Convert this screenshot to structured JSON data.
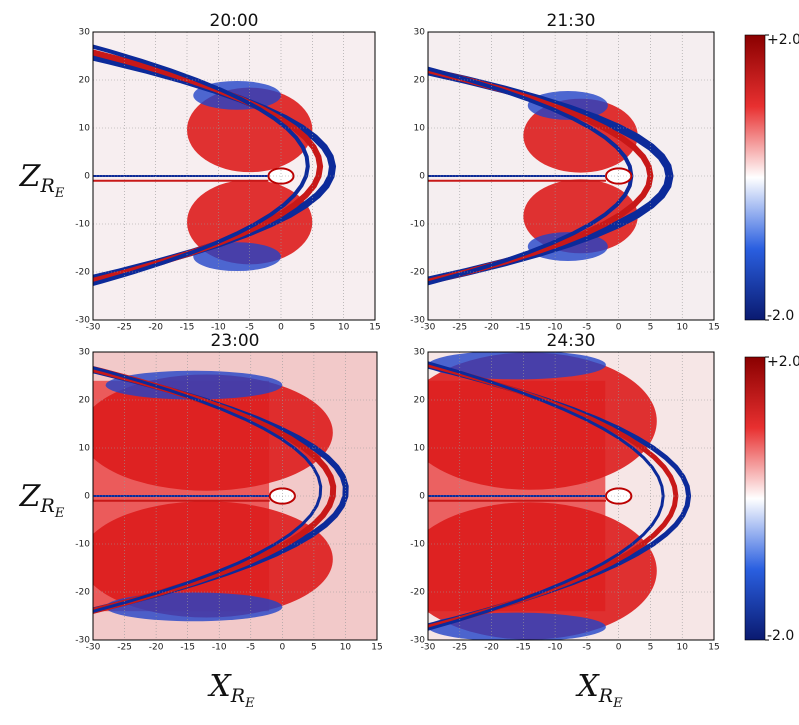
{
  "figure": {
    "panels": [
      {
        "title": "20:00"
      },
      {
        "title": "21:30"
      },
      {
        "title": "23:00"
      },
      {
        "title": "24:30"
      }
    ],
    "xlim": [
      -30,
      15
    ],
    "ylim": [
      -30,
      30
    ],
    "xticks": [
      -30,
      -25,
      -20,
      -15,
      -10,
      -5,
      0,
      5,
      10,
      15
    ],
    "yticks": [
      -30,
      -20,
      -10,
      0,
      10,
      20,
      30
    ],
    "colorbar": {
      "clim": [
        -2,
        2
      ],
      "ticks": [
        {
          "value": 2,
          "label": "+2.0"
        },
        {
          "value": -2,
          "label": "-2.0"
        }
      ]
    },
    "ylabel": {
      "main": "Z",
      "sub": "R",
      "subsub": "E"
    },
    "xlabel": {
      "main": "X",
      "sub": "R",
      "subsub": "E"
    }
  }
}
